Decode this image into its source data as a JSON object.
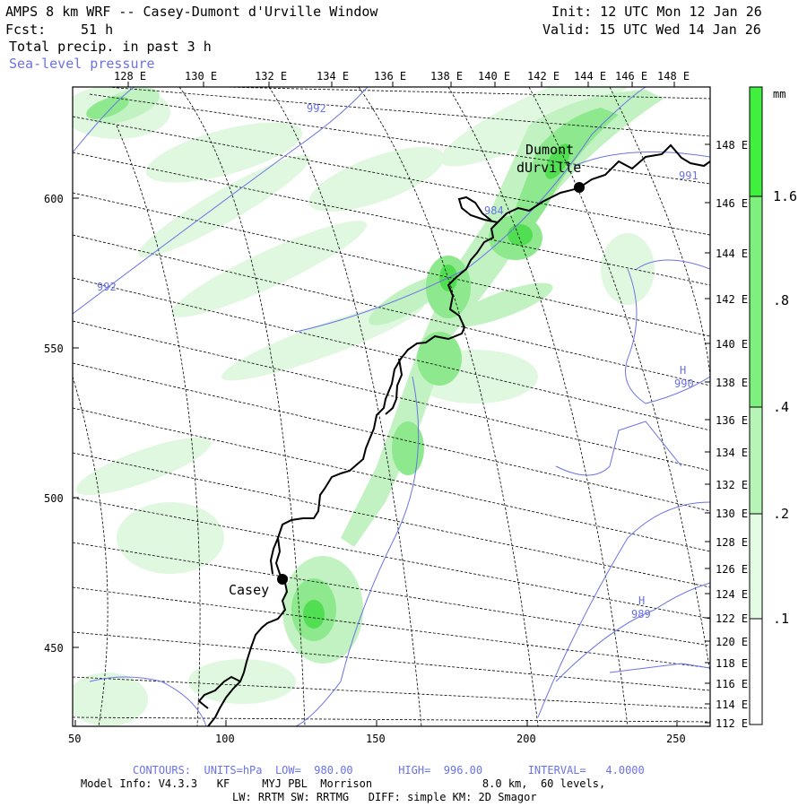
{
  "header": {
    "title": "AMPS 8 km WRF -- Casey-Dumont d'Urville Window",
    "fcst_label": "Fcst:",
    "fcst_value": "51 h",
    "field": "Total precip. in past 3 h",
    "overlay": "Sea-level pressure",
    "init": "Init: 12 UTC Mon 12 Jan 26",
    "valid": "Valid: 15 UTC Wed 14 Jan 26"
  },
  "axes": {
    "top_lon_labels": [
      "128 E",
      "130 E",
      "132 E",
      "134 E",
      "136 E",
      "138 E",
      "140 E",
      "142 E",
      "144 E",
      "146 E",
      "148 E"
    ],
    "right_lon_labels": [
      "148 E",
      "146 E",
      "144 E",
      "142 E",
      "140 E",
      "138 E",
      "136 E",
      "134 E",
      "132 E",
      "130 E",
      "128 E",
      "126 E",
      "124 E",
      "122 E",
      "120 E",
      "118 E",
      "116 E",
      "114 E",
      "112 E"
    ],
    "left_y_labels": [
      "600",
      "550",
      "500",
      "450"
    ],
    "bottom_x_labels": [
      "50",
      "100",
      "150",
      "200",
      "250"
    ]
  },
  "colorbar": {
    "unit": "mm",
    "labels": [
      "1.6",
      ".8",
      ".4",
      ".2",
      ".1"
    ],
    "colors": [
      "#3ff03f",
      "#7ef07e",
      "#b7f5b7",
      "#e4fbe4",
      "#ffffff"
    ]
  },
  "map_labels": {
    "dumont_line1": "Dumont",
    "dumont_line2": "dUrville",
    "casey": "Casey",
    "isobar_992_top": "992",
    "isobar_992_left": "992",
    "isobar_984": "984",
    "isobar_991": "991",
    "high1_letter": "H",
    "high1_value": "990",
    "high2_letter": "H",
    "high2_value": "989"
  },
  "footer": {
    "contours": "CONTOURS:  UNITS=hPa  LOW=  980.00       HIGH=  996.00       INTERVAL=   4.0000",
    "model_info": "Model Info: V4.3.3   KF     MYJ PBL  Morrison                 8.0 km,  60 levels,",
    "physics": "LW: RRTM SW: RRTMG   DIFF: simple KM: 2D Smagor"
  },
  "colors": {
    "isobar": "#6b73e6",
    "coast": "#000000",
    "precip_light": "#cdf5cd",
    "precip_mid": "#8ae88a",
    "precip_heavy": "#47dc47"
  }
}
